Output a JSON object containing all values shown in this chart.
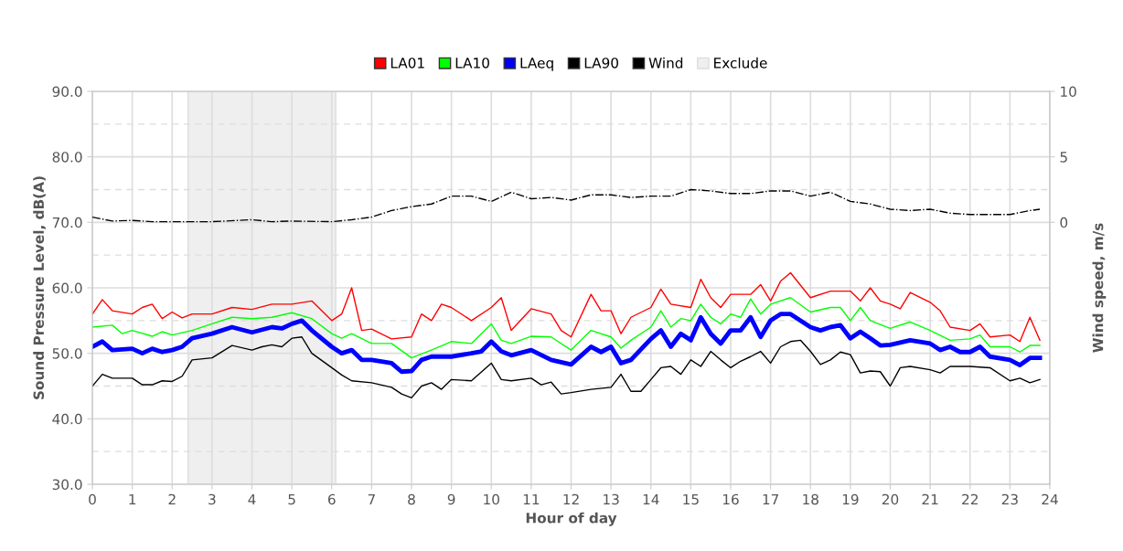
{
  "chart_data": {
    "type": "line",
    "xlabel": "Hour of day",
    "ylabel": "Sound Pressure Level, dB(A)",
    "y2label": "Wind speed, m/s",
    "xlim": [
      0,
      24
    ],
    "xticks": [
      0,
      1,
      2,
      3,
      4,
      5,
      6,
      7,
      8,
      9,
      10,
      11,
      12,
      13,
      14,
      15,
      16,
      17,
      18,
      19,
      20,
      21,
      22,
      23,
      24
    ],
    "ylim": [
      30,
      90
    ],
    "yticks": [
      {
        "value": 30,
        "label": "30.0"
      },
      {
        "value": 35,
        "label": null
      },
      {
        "value": 40,
        "label": "40.0"
      },
      {
        "value": 45,
        "label": null
      },
      {
        "value": 50,
        "label": "50.0"
      },
      {
        "value": 55,
        "label": null
      },
      {
        "value": 60,
        "label": "60.0"
      },
      {
        "value": 65,
        "label": null
      },
      {
        "value": 70,
        "label": "70.0"
      },
      {
        "value": 75,
        "label": null
      },
      {
        "value": 80,
        "label": "80.0"
      },
      {
        "value": 85,
        "label": null
      },
      {
        "value": 90,
        "label": "90.0"
      }
    ],
    "y2lim": [
      -20,
      10
    ],
    "y2ticks": [
      0,
      5,
      10
    ],
    "grid": true,
    "legend": "top",
    "marker": "none",
    "bands": [
      {
        "axis": "x",
        "from": 2.4,
        "to": 6.1,
        "label": "Exclude",
        "color": "#efefef"
      }
    ],
    "series": [
      {
        "name": "LA01",
        "color": "#ff0000",
        "line_style": "solid",
        "x": [
          0,
          0.25,
          0.5,
          1,
          1.25,
          1.5,
          1.75,
          2,
          2.25,
          2.5,
          3,
          3.5,
          4,
          4.5,
          5,
          5.5,
          6,
          6.25,
          6.5,
          6.75,
          7,
          7.5,
          8,
          8.25,
          8.5,
          8.75,
          9,
          9.5,
          10,
          10.25,
          10.5,
          11,
          11.5,
          11.75,
          12,
          12.5,
          12.75,
          13,
          13.25,
          13.5,
          14,
          14.25,
          14.5,
          15,
          15.25,
          15.5,
          15.75,
          16,
          16.5,
          16.75,
          17,
          17.25,
          17.5,
          18,
          18.5,
          19,
          19.25,
          19.5,
          19.75,
          20,
          20.25,
          20.5,
          21,
          21.25,
          21.5,
          22,
          22.25,
          22.5,
          23,
          23.25,
          23.5,
          23.75
        ],
        "values": [
          56,
          58.2,
          56.5,
          56,
          57,
          57.5,
          55.3,
          56.3,
          55.4,
          56,
          56,
          57,
          56.7,
          57.5,
          57.5,
          58,
          55,
          56,
          60,
          53.5,
          53.7,
          52.2,
          52.5,
          56,
          55,
          57.5,
          57,
          55,
          57,
          58.5,
          53.5,
          56.8,
          56,
          53.5,
          52.5,
          59,
          56.5,
          56.5,
          53,
          55.5,
          57,
          59.8,
          57.5,
          57,
          61.3,
          58.5,
          57,
          59,
          59,
          60.5,
          58,
          61,
          62.3,
          58.5,
          59.5,
          59.5,
          58,
          60,
          58,
          57.5,
          56.8,
          59.3,
          57.8,
          56.5,
          54,
          53.5,
          54.5,
          52.5,
          52.8,
          51.8,
          55.5,
          52
        ]
      },
      {
        "name": "LA10",
        "color": "#00ff00",
        "line_style": "solid",
        "x": [
          0,
          0.5,
          0.75,
          1,
          1.5,
          1.75,
          2,
          2.5,
          3,
          3.5,
          4,
          4.5,
          5,
          5.5,
          6,
          6.25,
          6.5,
          7,
          7.5,
          8,
          8.5,
          9,
          9.5,
          10,
          10.25,
          10.5,
          11,
          11.5,
          12,
          12.5,
          13,
          13.25,
          13.5,
          14,
          14.25,
          14.5,
          14.75,
          15,
          15.25,
          15.5,
          15.75,
          16,
          16.25,
          16.5,
          16.75,
          17,
          17.5,
          18,
          18.5,
          18.75,
          19,
          19.25,
          19.5,
          20,
          20.5,
          21,
          21.5,
          22,
          22.25,
          22.5,
          23,
          23.25,
          23.5,
          23.75
        ],
        "values": [
          54,
          54.3,
          53,
          53.5,
          52.6,
          53.3,
          52.8,
          53.5,
          54.5,
          55.5,
          55.3,
          55.5,
          56.2,
          55.3,
          53,
          52.3,
          53,
          51.5,
          51.5,
          49.3,
          50.5,
          51.8,
          51.5,
          54.5,
          52,
          51.5,
          52.6,
          52.5,
          50.5,
          53.5,
          52.5,
          50.8,
          52,
          54,
          56.5,
          54,
          55.3,
          55,
          57.5,
          55.5,
          54.5,
          56,
          55.5,
          58.3,
          56,
          57.5,
          58.5,
          56.3,
          57,
          57,
          55,
          57,
          55,
          53.8,
          54.8,
          53.5,
          52,
          52.2,
          52.8,
          51,
          51,
          50.2,
          51.2,
          51.2
        ]
      },
      {
        "name": "LAeq",
        "color": "#0000ff",
        "line_style": "solid",
        "x": [
          0,
          0.25,
          0.5,
          1,
          1.25,
          1.5,
          1.75,
          2,
          2.25,
          2.5,
          3,
          3.5,
          4,
          4.5,
          4.75,
          5,
          5.25,
          5.5,
          6,
          6.25,
          6.5,
          6.75,
          7,
          7.5,
          7.75,
          8,
          8.25,
          8.5,
          9,
          9.5,
          9.75,
          10,
          10.25,
          10.5,
          11,
          11.5,
          12,
          12.5,
          12.75,
          13,
          13.25,
          13.5,
          14,
          14.25,
          14.5,
          14.75,
          15,
          15.25,
          15.5,
          15.75,
          16,
          16.25,
          16.5,
          16.75,
          17,
          17.25,
          17.5,
          18,
          18.25,
          18.5,
          18.75,
          19,
          19.25,
          19.5,
          19.75,
          20,
          20.5,
          21,
          21.25,
          21.5,
          21.75,
          22,
          22.25,
          22.5,
          23,
          23.25,
          23.5,
          23.75
        ],
        "values": [
          51,
          51.8,
          50.5,
          50.7,
          50,
          50.7,
          50.2,
          50.5,
          51,
          52.3,
          53,
          54,
          53.2,
          54,
          53.8,
          54.5,
          55,
          53.5,
          51,
          50,
          50.5,
          49,
          49,
          48.5,
          47.2,
          47.3,
          49,
          49.5,
          49.5,
          50,
          50.3,
          51.8,
          50.3,
          49.7,
          50.5,
          49,
          48.3,
          51,
          50.2,
          51,
          48.5,
          49,
          52.2,
          53.5,
          51,
          53,
          52,
          55.5,
          53,
          51.5,
          53.5,
          53.5,
          55.5,
          52.5,
          55,
          56,
          56,
          54,
          53.5,
          54,
          54.3,
          52.3,
          53.3,
          52.3,
          51.2,
          51.3,
          52,
          51.5,
          50.5,
          51,
          50.2,
          50.2,
          51,
          49.5,
          49,
          48.2,
          49.3,
          49.3
        ]
      },
      {
        "name": "LA90",
        "color": "#000000",
        "line_style": "solid",
        "x": [
          0,
          0.25,
          0.5,
          1,
          1.25,
          1.5,
          1.75,
          2,
          2.25,
          2.5,
          3,
          3.5,
          4,
          4.25,
          4.5,
          4.75,
          5,
          5.25,
          5.5,
          6,
          6.25,
          6.5,
          7,
          7.5,
          7.75,
          8,
          8.25,
          8.5,
          8.75,
          9,
          9.5,
          10,
          10.25,
          10.5,
          11,
          11.25,
          11.5,
          11.75,
          12,
          12.5,
          13,
          13.25,
          13.5,
          13.75,
          14,
          14.25,
          14.5,
          14.75,
          15,
          15.25,
          15.5,
          15.75,
          16,
          16.25,
          16.5,
          16.75,
          17,
          17.25,
          17.5,
          17.75,
          18,
          18.25,
          18.5,
          18.75,
          19,
          19.25,
          19.5,
          19.75,
          20,
          20.25,
          20.5,
          21,
          21.25,
          21.5,
          21.75,
          22,
          22.5,
          23,
          23.25,
          23.5,
          23.75
        ],
        "values": [
          45,
          46.8,
          46.2,
          46.2,
          45.2,
          45.2,
          45.8,
          45.7,
          46.5,
          49,
          49.3,
          51.2,
          50.5,
          51,
          51.3,
          51,
          52.3,
          52.5,
          50,
          47.8,
          46.7,
          45.8,
          45.5,
          44.8,
          43.8,
          43.2,
          45,
          45.5,
          44.5,
          46,
          45.8,
          48.5,
          46,
          45.8,
          46.2,
          45.2,
          45.6,
          43.8,
          44,
          44.5,
          44.8,
          46.8,
          44.2,
          44.2,
          46,
          47.8,
          48,
          46.8,
          49,
          48,
          50.3,
          49,
          47.8,
          48.8,
          49.5,
          50.3,
          48.5,
          51,
          51.8,
          52,
          50.3,
          48.3,
          49,
          50.2,
          49.8,
          47,
          47.3,
          47.2,
          45,
          47.8,
          48,
          47.5,
          47,
          48,
          48,
          48,
          47.8,
          45.8,
          46.2,
          45.5,
          46
        ]
      },
      {
        "name": "Wind",
        "color": "#000000",
        "line_style": "dashdot",
        "axis": "y2",
        "x": [
          0,
          0.5,
          1,
          1.5,
          2,
          3,
          4,
          4.5,
          5,
          6,
          6.5,
          7,
          7.5,
          8,
          8.5,
          9,
          9.5,
          10,
          10.5,
          11,
          11.5,
          12,
          12.5,
          13,
          13.5,
          14,
          14.5,
          15,
          15.5,
          16,
          16.5,
          17,
          17.5,
          18,
          18.5,
          19,
          19.5,
          20,
          20.5,
          21,
          21.5,
          22,
          22.5,
          23,
          23.5,
          23.75
        ],
        "values": [
          0.4,
          0.1,
          0.15,
          0.05,
          0.05,
          0.05,
          0.2,
          0.05,
          0.1,
          0.05,
          0.2,
          0.4,
          0.9,
          1.2,
          1.4,
          2.0,
          2.0,
          1.6,
          2.3,
          1.8,
          1.9,
          1.7,
          2.1,
          2.1,
          1.9,
          2.0,
          2.0,
          2.5,
          2.4,
          2.2,
          2.2,
          2.4,
          2.4,
          2.0,
          2.3,
          1.6,
          1.4,
          1.0,
          0.9,
          1.0,
          0.7,
          0.6,
          0.6,
          0.6,
          0.9,
          1.0
        ]
      }
    ]
  }
}
